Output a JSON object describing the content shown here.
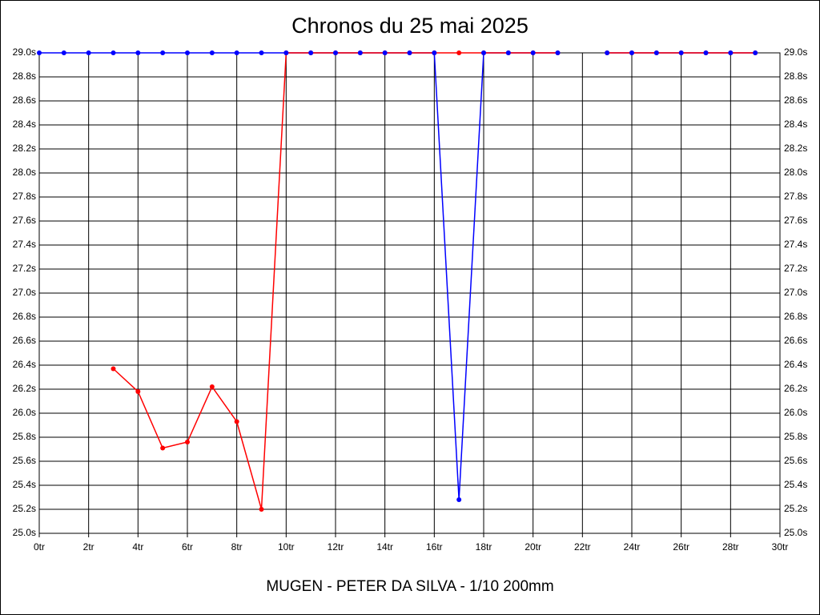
{
  "chart_data": {
    "type": "line",
    "title": "Chronos du 25 mai 2025",
    "xlabel": "MUGEN - PETER DA SILVA - 1/10 200mm",
    "x": [
      0,
      1,
      2,
      3,
      4,
      5,
      6,
      7,
      8,
      9,
      10,
      11,
      12,
      13,
      14,
      15,
      16,
      17,
      18,
      19,
      20,
      21,
      22,
      23,
      24,
      25,
      26,
      27,
      28,
      29
    ],
    "series": [
      {
        "color": "#0000ff",
        "values": [
          29,
          29,
          29,
          29,
          29,
          29,
          29,
          29,
          29,
          29,
          29,
          29,
          29,
          29,
          29,
          29,
          29,
          25.28,
          29,
          29,
          29,
          29,
          null,
          29,
          29,
          29,
          29,
          29,
          29,
          29
        ]
      },
      {
        "color": "#ff0000",
        "values": [
          null,
          null,
          null,
          26.37,
          26.18,
          25.71,
          25.76,
          26.22,
          25.93,
          25.2,
          29,
          29,
          29,
          29,
          29,
          29,
          29,
          29,
          29,
          29,
          29,
          29,
          null,
          29,
          29,
          29,
          29,
          29,
          29,
          29
        ]
      }
    ],
    "xlim": [
      0,
      30
    ],
    "xticks": [
      {
        "value": 0,
        "label": "0tr"
      },
      {
        "value": 2,
        "label": "2tr"
      },
      {
        "value": 4,
        "label": "4tr"
      },
      {
        "value": 6,
        "label": "6tr"
      },
      {
        "value": 8,
        "label": "8tr"
      },
      {
        "value": 10,
        "label": "10tr"
      },
      {
        "value": 12,
        "label": "12tr"
      },
      {
        "value": 14,
        "label": "14tr"
      },
      {
        "value": 16,
        "label": "16tr"
      },
      {
        "value": 18,
        "label": "18tr"
      },
      {
        "value": 20,
        "label": "20tr"
      },
      {
        "value": 22,
        "label": "22tr"
      },
      {
        "value": 24,
        "label": "24tr"
      },
      {
        "value": 26,
        "label": "26tr"
      },
      {
        "value": 28,
        "label": "28tr"
      },
      {
        "value": 30,
        "label": "30tr"
      }
    ],
    "ylim": [
      25,
      29
    ],
    "yticks": [
      {
        "value": 25.0,
        "label": "25.0s"
      },
      {
        "value": 25.2,
        "label": "25.2s"
      },
      {
        "value": 25.4,
        "label": "25.4s"
      },
      {
        "value": 25.6,
        "label": "25.6s"
      },
      {
        "value": 25.8,
        "label": "25.8s"
      },
      {
        "value": 26.0,
        "label": "26.0s"
      },
      {
        "value": 26.2,
        "label": "26.2s"
      },
      {
        "value": 26.4,
        "label": "26.4s"
      },
      {
        "value": 26.6,
        "label": "26.6s"
      },
      {
        "value": 26.8,
        "label": "26.8s"
      },
      {
        "value": 27.0,
        "label": "27.0s"
      },
      {
        "value": 27.2,
        "label": "27.2s"
      },
      {
        "value": 27.4,
        "label": "27.4s"
      },
      {
        "value": 27.6,
        "label": "27.6s"
      },
      {
        "value": 27.8,
        "label": "27.8s"
      },
      {
        "value": 28.0,
        "label": "28.0s"
      },
      {
        "value": 28.2,
        "label": "28.2s"
      },
      {
        "value": 28.4,
        "label": "28.4s"
      },
      {
        "value": 28.6,
        "label": "28.6s"
      },
      {
        "value": 28.8,
        "label": "28.8s"
      },
      {
        "value": 29.0,
        "label": "29.0s"
      }
    ],
    "grid": true
  }
}
